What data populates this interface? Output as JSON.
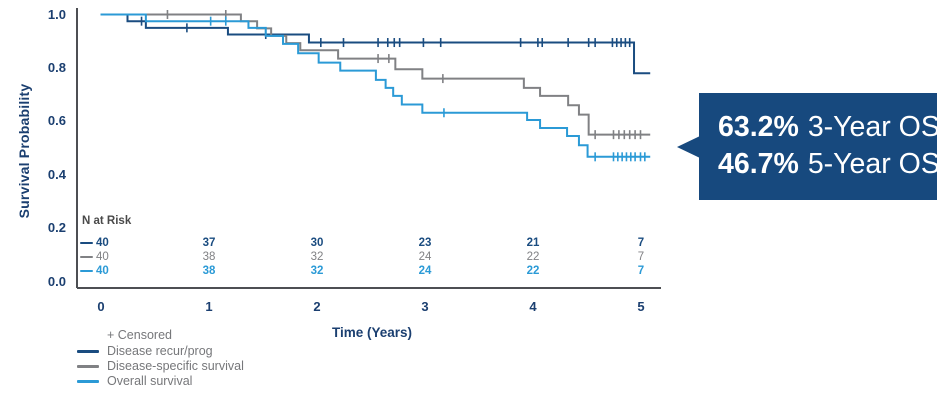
{
  "chart_data": {
    "type": "line",
    "subtype": "kaplan-meier-step-curves",
    "title": "",
    "xlabel": "Time (Years)",
    "ylabel": "Survival Probability",
    "xlim": [
      0,
      5.1
    ],
    "ylim": [
      0.0,
      1.0
    ],
    "x_ticks": [
      0,
      1,
      2,
      3,
      4,
      5
    ],
    "y_ticks": [
      1.0,
      0.8,
      0.6,
      0.4,
      0.2,
      0.0
    ],
    "grid": false,
    "legend_position": "bottom-left",
    "x_end": 5.09,
    "series": [
      {
        "name": "Disease recur/prog",
        "color": "#1A4C80",
        "start": [
          0,
          1.0
        ],
        "steps": [
          [
            0.25,
            0.975
          ],
          [
            0.42,
            0.95
          ],
          [
            1.18,
            0.925
          ],
          [
            1.93,
            0.895
          ],
          [
            4.94,
            0.78
          ]
        ],
        "censor_times": [
          0.38,
          0.8,
          1.53,
          2.04,
          2.25,
          2.57,
          2.66,
          2.72,
          2.77,
          2.99,
          3.15,
          3.89,
          4.05,
          4.09,
          4.33,
          4.52,
          4.58,
          4.74,
          4.78,
          4.82,
          4.86,
          4.9
        ]
      },
      {
        "name": "Disease-specific survival",
        "color": "#808184",
        "start": [
          0,
          1.0
        ],
        "steps": [
          [
            1.3,
            0.975
          ],
          [
            1.45,
            0.948
          ],
          [
            1.58,
            0.92
          ],
          [
            1.72,
            0.893
          ],
          [
            1.85,
            0.866
          ],
          [
            2.2,
            0.835
          ],
          [
            2.73,
            0.795
          ],
          [
            2.98,
            0.76
          ],
          [
            3.92,
            0.725
          ],
          [
            4.07,
            0.695
          ],
          [
            4.33,
            0.66
          ],
          [
            4.43,
            0.625
          ],
          [
            4.52,
            0.55
          ]
        ],
        "censor_times": [
          0.62,
          1.16,
          2.57,
          2.67,
          3.17,
          4.58,
          4.75,
          4.8,
          4.85,
          4.9,
          4.95,
          5.0
        ]
      },
      {
        "name": "Overall survival",
        "color": "#2B9AD6",
        "start": [
          0,
          1.0
        ],
        "steps": [
          [
            0.42,
            0.975
          ],
          [
            1.37,
            0.95
          ],
          [
            1.53,
            0.92
          ],
          [
            1.69,
            0.89
          ],
          [
            1.83,
            0.855
          ],
          [
            2.02,
            0.82
          ],
          [
            2.22,
            0.79
          ],
          [
            2.55,
            0.755
          ],
          [
            2.64,
            0.725
          ],
          [
            2.71,
            0.695
          ],
          [
            2.79,
            0.663
          ],
          [
            2.98,
            0.632
          ],
          [
            3.95,
            0.605
          ],
          [
            4.07,
            0.575
          ],
          [
            4.32,
            0.545
          ],
          [
            4.43,
            0.51
          ],
          [
            4.51,
            0.467
          ]
        ],
        "censor_times": [
          1.02,
          1.16,
          3.18,
          4.58,
          4.75,
          4.79,
          4.83,
          4.87,
          4.91,
          4.95,
          5.0,
          5.04
        ]
      }
    ],
    "n_at_risk": {
      "title": "N at Risk",
      "times": [
        0,
        1,
        2,
        3,
        4,
        5
      ],
      "rows": [
        {
          "series": "Disease recur/prog",
          "color": "#1A4C80",
          "bold": true,
          "counts": [
            40,
            37,
            30,
            23,
            21,
            7
          ]
        },
        {
          "series": "Disease-specific survival",
          "color": "#808184",
          "bold": false,
          "counts": [
            40,
            38,
            32,
            24,
            22,
            7
          ]
        },
        {
          "series": "Overall survival",
          "color": "#2B9AD6",
          "bold": true,
          "counts": [
            40,
            38,
            32,
            24,
            22,
            7
          ]
        }
      ]
    }
  },
  "legend": {
    "censored_label": "+ Censored",
    "items": [
      {
        "label": "Disease recur/prog",
        "color": "#1A4C80"
      },
      {
        "label": "Disease-specific survival",
        "color": "#808184"
      },
      {
        "label": "Overall survival",
        "color": "#2B9AD6"
      }
    ]
  },
  "callout": {
    "background": "#17497E",
    "text_color": "#FFFFFF",
    "lines": [
      {
        "value": "63.2%",
        "label": "3-Year OS"
      },
      {
        "value": "46.7%",
        "label": "5-Year OS"
      }
    ]
  },
  "colors": {
    "axis_line": "#4D4F53",
    "axis_text": "#1B3F70",
    "risk_title_text": "#4A4A4A",
    "legend_text": "#76777A"
  }
}
